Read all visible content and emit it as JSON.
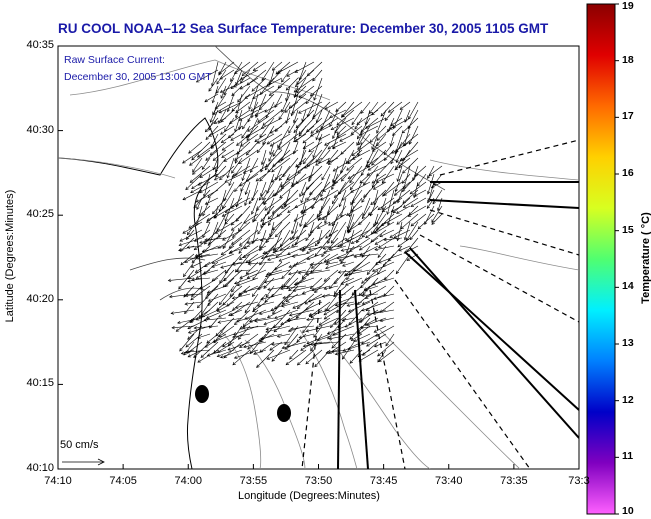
{
  "title": "RU COOL   NOAA–12  Sea Surface Temperature:  December 30, 2005 1105 GMT",
  "inset": {
    "line1": "Raw Surface Current:",
    "line2": "December 30, 2005 13:00 GMT"
  },
  "axes": {
    "xlabel": "Longitude (Degrees:Minutes)",
    "ylabel": "Latitude (Degrees:Minutes)",
    "xticks": [
      "74:10",
      "74:05",
      "74:00",
      "73:55",
      "73:50",
      "73:45",
      "73:40",
      "73:35",
      "73:3"
    ],
    "yticks": [
      "40:35",
      "40:30",
      "40:25",
      "40:20",
      "40:15",
      "40:10"
    ]
  },
  "scale": {
    "label": "50 cm/s"
  },
  "colorbar": {
    "label": "Temperature ( °C)",
    "ticks": [
      "19",
      "18",
      "17",
      "16",
      "15",
      "14",
      "13",
      "12",
      "11",
      "10"
    ],
    "stops": [
      "#8b0000",
      "#e00000",
      "#ff6a00",
      "#ffd000",
      "#d8ff20",
      "#50ff70",
      "#00f0ff",
      "#0080ff",
      "#0000c8",
      "#8000c0",
      "#ff60ff"
    ]
  },
  "chart_data": {
    "type": "map",
    "title": "RU COOL   NOAA–12  Sea Surface Temperature:  December 30, 2005 1105 GMT",
    "xlabel": "Longitude (Degrees:Minutes)",
    "ylabel": "Latitude (Degrees:Minutes)",
    "xlim": [
      "74:10",
      "73:30"
    ],
    "ylim": [
      "40:10",
      "40:35"
    ],
    "colorbar_range": [
      10,
      19
    ],
    "vector_scale": "50 cm/s"
  }
}
